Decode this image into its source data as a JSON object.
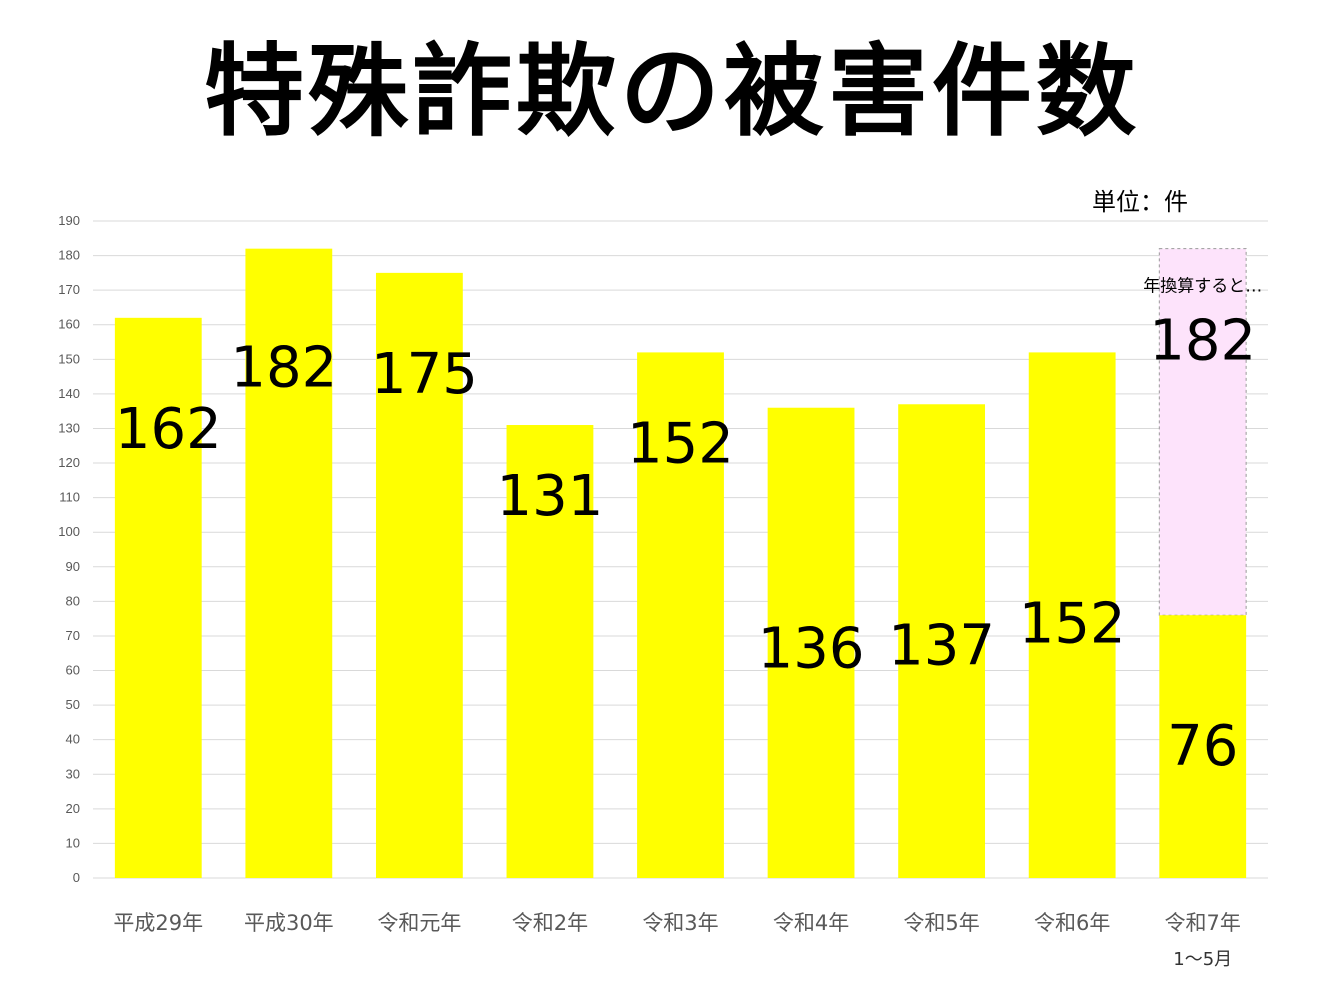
{
  "title": "特殊詐欺の被害件数",
  "unit_label": "単位：件",
  "annualized_note": "年換算すると…",
  "colors": {
    "bar": "#ffff00",
    "projection_fill": "#fde3fb",
    "projection_border": "#999999",
    "gridline": "#d9d9d9",
    "text": "#000000"
  },
  "chart_data": {
    "type": "bar",
    "title": "特殊詐欺の被害件数",
    "categories": [
      "平成29年",
      "平成30年",
      "令和元年",
      "令和2年",
      "令和3年",
      "令和4年",
      "令和5年",
      "令和6年",
      "令和7年"
    ],
    "category_sublabels": [
      "",
      "",
      "",
      "",
      "",
      "",
      "",
      "",
      "1～5月"
    ],
    "values": [
      162,
      182,
      175,
      131,
      152,
      136,
      137,
      152,
      76
    ],
    "data_labels": [
      "162",
      "182",
      "175",
      "131",
      "152",
      "136",
      "137",
      "152",
      "76"
    ],
    "projection": {
      "category": "令和7年",
      "value": 182,
      "label": "182",
      "note": "年換算すると…"
    },
    "ylim": [
      0,
      190
    ],
    "ytick_step": 10,
    "grid": true,
    "legend": "none",
    "xlabel": "",
    "ylabel": ""
  }
}
